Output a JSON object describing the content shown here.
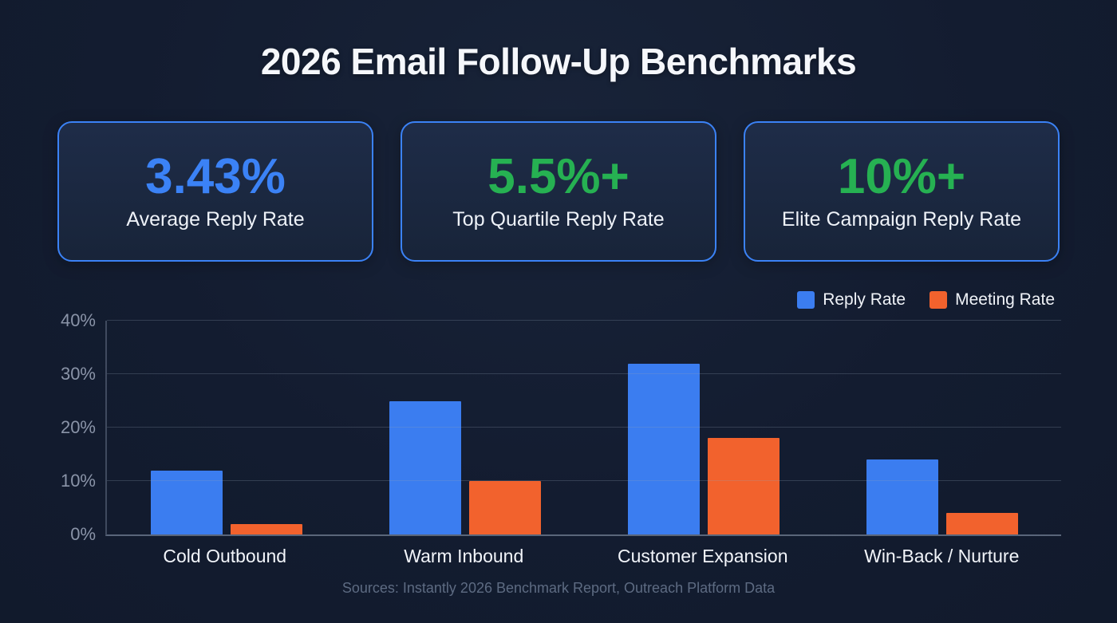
{
  "page": {
    "title": "2026 Email Follow-Up Benchmarks",
    "footer": "Sources: Instantly 2026 Benchmark Report, Outreach Platform Data",
    "background_color": "#131c30"
  },
  "stat_cards": [
    {
      "value": "3.43%",
      "label": "Average Reply Rate",
      "value_color": "#3b82f6"
    },
    {
      "value": "5.5%+",
      "label": "Top Quartile Reply Rate",
      "value_color": "#26b152"
    },
    {
      "value": "10%+",
      "label": "Elite Campaign Reply Rate",
      "value_color": "#26b152"
    }
  ],
  "chart_data": {
    "type": "bar",
    "title": "",
    "categories": [
      "Cold Outbound",
      "Warm Inbound",
      "Customer Expansion",
      "Win-Back / Nurture"
    ],
    "series": [
      {
        "name": "Reply Rate",
        "color": "#3b7df0",
        "values": [
          12,
          25,
          32,
          14
        ]
      },
      {
        "name": "Meeting Rate",
        "color": "#f2622d",
        "values": [
          2,
          10,
          18,
          4
        ]
      }
    ],
    "xlabel": "",
    "ylabel": "",
    "ylim": [
      0,
      40
    ],
    "yticks": [
      0,
      10,
      20,
      30,
      40
    ],
    "ytick_suffix": "%",
    "grid": true,
    "legend_position": "top-right"
  }
}
